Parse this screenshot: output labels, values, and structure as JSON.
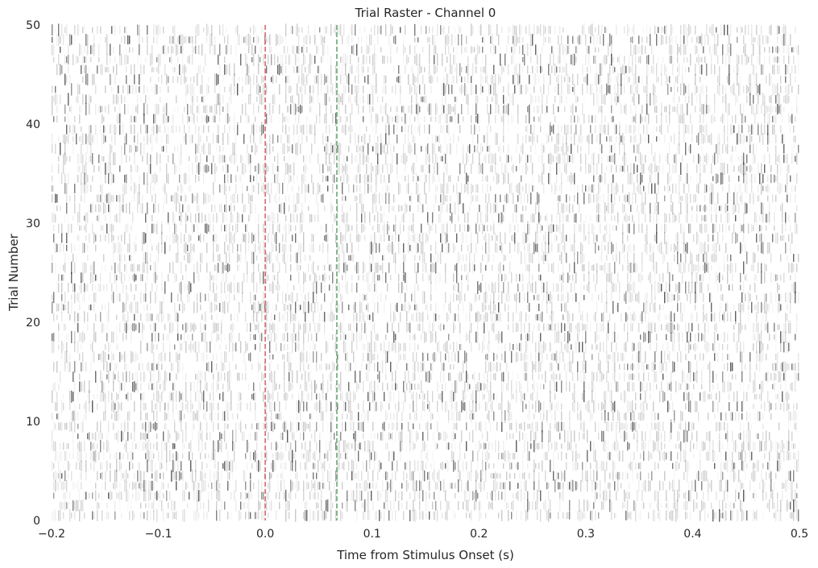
{
  "chart_data": {
    "type": "heatmap",
    "title": "Trial Raster - Channel 0",
    "xlabel": "Time from Stimulus Onset (s)",
    "ylabel": "Trial Number",
    "xlim": [
      -0.2,
      0.5
    ],
    "ylim": [
      0,
      50
    ],
    "x_ticks": [
      -0.2,
      -0.1,
      0.0,
      0.1,
      0.2,
      0.3,
      0.4,
      0.5
    ],
    "x_tick_labels": [
      "−0.2",
      "−0.1",
      "0.0",
      "0.1",
      "0.2",
      "0.3",
      "0.4",
      "0.5"
    ],
    "y_ticks": [
      0,
      10,
      20,
      30,
      40,
      50
    ],
    "y_tick_labels": [
      "0",
      "10",
      "20",
      "30",
      "40",
      "50"
    ],
    "n_trials": 50,
    "colormap": "gray_r",
    "grid": true,
    "reference_lines": [
      {
        "x": 0.0,
        "color": "#d9777a",
        "style": "dashed"
      },
      {
        "x": 0.067,
        "color": "#7bb07f",
        "style": "dashed"
      }
    ]
  }
}
